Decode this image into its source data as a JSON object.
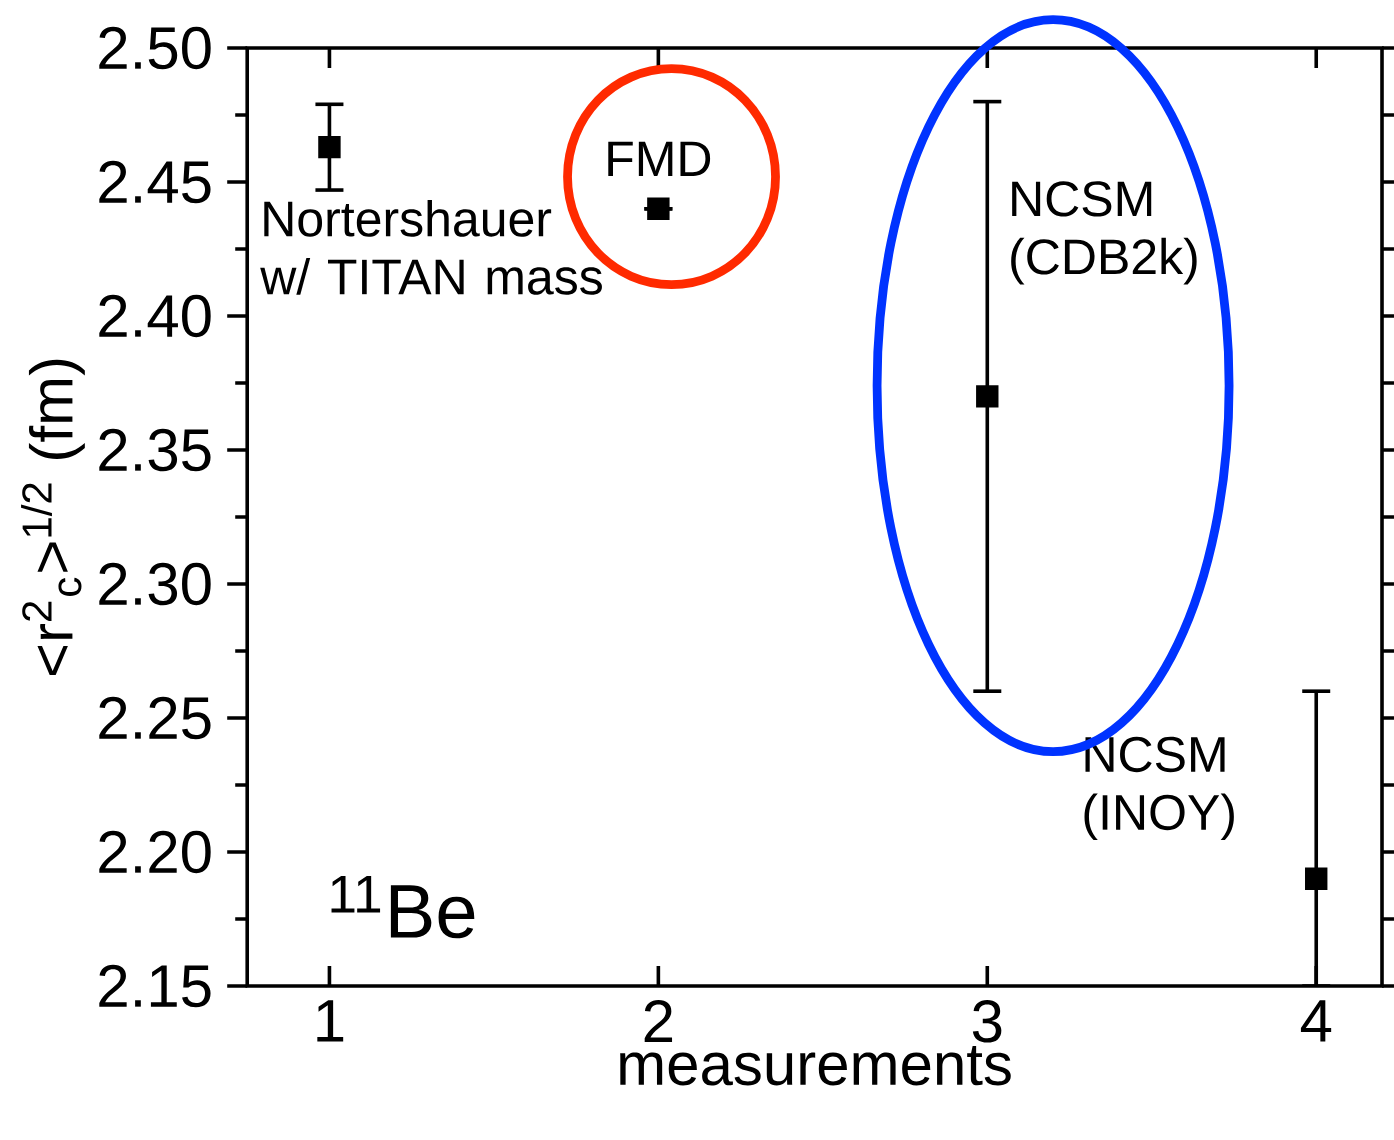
{
  "chart_data": {
    "type": "scatter",
    "xlabel": "measurements",
    "ylabel": "<r$^{2}$$_{c}$>$^{1/2}$ (fm)",
    "x": [
      1,
      2,
      3,
      4
    ],
    "series": [
      {
        "color": "#000000",
        "values": [
          2.463,
          2.44,
          2.37,
          2.19
        ],
        "errors": [
          0.016,
          null,
          [
            2.26,
            2.48
          ],
          [
            2.15,
            2.26
          ]
        ]
      }
    ],
    "xlim": [
      0.75,
      4.2
    ],
    "xticks": [
      1,
      2,
      3,
      4
    ],
    "ylim": [
      2.15,
      2.5
    ],
    "yticks": [
      2.15,
      {
        "value": 2.2,
        "label": "2.20"
      },
      2.25,
      {
        "value": 2.3,
        "label": "2.30"
      },
      2.35,
      {
        "value": 2.4,
        "label": "2.40"
      },
      2.45,
      {
        "value": 2.5,
        "label": "2.50"
      }
    ],
    "marker": "square",
    "grid": false,
    "annotations": [
      {
        "text": "Nortershauer w/ TITAN mass",
        "x": 1,
        "y": 2.463
      },
      {
        "text": "FMD",
        "x": 2,
        "y": 2.44
      },
      {
        "text": "NCSM (CDB2k)",
        "x": 3,
        "y": 2.37
      },
      {
        "text": "NCSM (INOY)",
        "x": 4,
        "y": 2.19
      },
      "$^{11}$Be"
    ]
  }
}
